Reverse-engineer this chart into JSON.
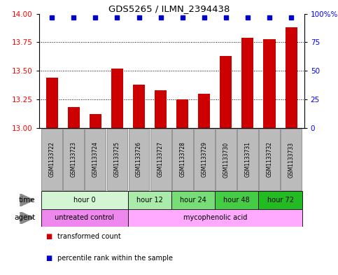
{
  "title": "GDS5265 / ILMN_2394438",
  "samples": [
    "GSM1133722",
    "GSM1133723",
    "GSM1133724",
    "GSM1133725",
    "GSM1133726",
    "GSM1133727",
    "GSM1133728",
    "GSM1133729",
    "GSM1133730",
    "GSM1133731",
    "GSM1133732",
    "GSM1133733"
  ],
  "bar_values": [
    13.44,
    13.18,
    13.12,
    13.52,
    13.38,
    13.33,
    13.25,
    13.3,
    13.63,
    13.79,
    13.78,
    13.88
  ],
  "bar_color": "#cc0000",
  "percentile_color": "#0000cc",
  "ylim_left": [
    13.0,
    14.0
  ],
  "ylim_right": [
    0,
    100
  ],
  "yticks_left": [
    13.0,
    13.25,
    13.5,
    13.75,
    14.0
  ],
  "yticks_right": [
    0,
    25,
    50,
    75,
    100
  ],
  "grid_lines": [
    13.25,
    13.5,
    13.75
  ],
  "time_groups": [
    {
      "label": "hour 0",
      "start": 0,
      "end": 4,
      "color": "#d4f5d4"
    },
    {
      "label": "hour 12",
      "start": 4,
      "end": 6,
      "color": "#aaeaaa"
    },
    {
      "label": "hour 24",
      "start": 6,
      "end": 8,
      "color": "#77dd77"
    },
    {
      "label": "hour 48",
      "start": 8,
      "end": 10,
      "color": "#44cc44"
    },
    {
      "label": "hour 72",
      "start": 10,
      "end": 12,
      "color": "#22bb22"
    }
  ],
  "agent_groups": [
    {
      "label": "untreated control",
      "start": 0,
      "end": 4,
      "color": "#ee88ee"
    },
    {
      "label": "mycophenolic acid",
      "start": 4,
      "end": 12,
      "color": "#ffaaff"
    }
  ],
  "legend_bar_label": "transformed count",
  "legend_pct_label": "percentile rank within the sample",
  "bg_color": "#ffffff",
  "sample_box_color": "#bbbbbb",
  "sample_box_edge": "#888888"
}
